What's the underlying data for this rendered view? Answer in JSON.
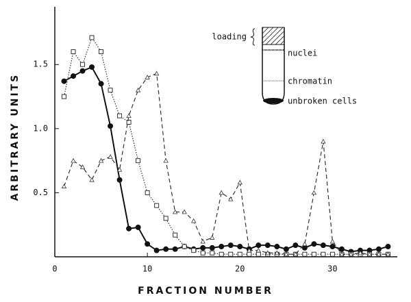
{
  "chart_data": {
    "type": "line",
    "xlabel": "FRACTION NUMBER",
    "ylabel": "ARBITRARY UNITS",
    "x": [
      1,
      2,
      3,
      4,
      5,
      6,
      7,
      8,
      9,
      10,
      11,
      12,
      13,
      14,
      15,
      16,
      17,
      18,
      19,
      20,
      21,
      22,
      23,
      24,
      25,
      26,
      27,
      28,
      29,
      30,
      31,
      32,
      33,
      34,
      35,
      36
    ],
    "series": [
      {
        "color": "#111111",
        "marker": "filled-circle",
        "dash": "solid",
        "values": [
          1.37,
          1.41,
          1.45,
          1.48,
          1.35,
          1.02,
          0.6,
          0.22,
          0.23,
          0.1,
          0.05,
          0.06,
          0.06,
          0.08,
          0.06,
          0.07,
          0.07,
          0.08,
          0.09,
          0.08,
          0.06,
          0.09,
          0.09,
          0.08,
          0.06,
          0.09,
          0.07,
          0.1,
          0.09,
          0.08,
          0.06,
          0.04,
          0.05,
          0.05,
          0.06,
          0.08
        ]
      },
      {
        "color": "#333333",
        "marker": "open-square",
        "dash": "dotted",
        "values": [
          1.25,
          1.6,
          1.5,
          1.71,
          1.6,
          1.3,
          1.1,
          1.05,
          0.75,
          0.5,
          0.4,
          0.3,
          0.17,
          0.08,
          0.05,
          0.03,
          0.03,
          0.02,
          0.02,
          0.02,
          0.02,
          0.02,
          0.02,
          0.02,
          0.02,
          0.02,
          0.02,
          0.02,
          0.02,
          0.02,
          0.02,
          0.02,
          0.02,
          0.02,
          0.02,
          0.02
        ]
      },
      {
        "color": "#333333",
        "marker": "open-triangle",
        "dash": "dashed",
        "values": [
          0.55,
          0.75,
          0.7,
          0.6,
          0.75,
          0.78,
          0.68,
          1.1,
          1.3,
          1.4,
          1.43,
          0.75,
          0.35,
          0.35,
          0.28,
          0.12,
          0.15,
          0.5,
          0.45,
          0.58,
          0.05,
          0.05,
          0.03,
          0.03,
          0.02,
          0.02,
          0.1,
          0.5,
          0.9,
          0.12,
          0.02,
          0.02,
          0.03,
          0.02,
          0.02,
          0.02
        ]
      }
    ],
    "xlim": [
      0,
      37
    ],
    "ylim": [
      0,
      1.95
    ],
    "xticks": [
      0,
      10,
      20,
      30
    ],
    "yticks": [
      0.5,
      {
        "value": 1,
        "label": "1.0"
      },
      1.5
    ],
    "annotations": [
      "loading",
      "nuclei",
      "chromatin",
      "unbroken cells"
    ]
  }
}
